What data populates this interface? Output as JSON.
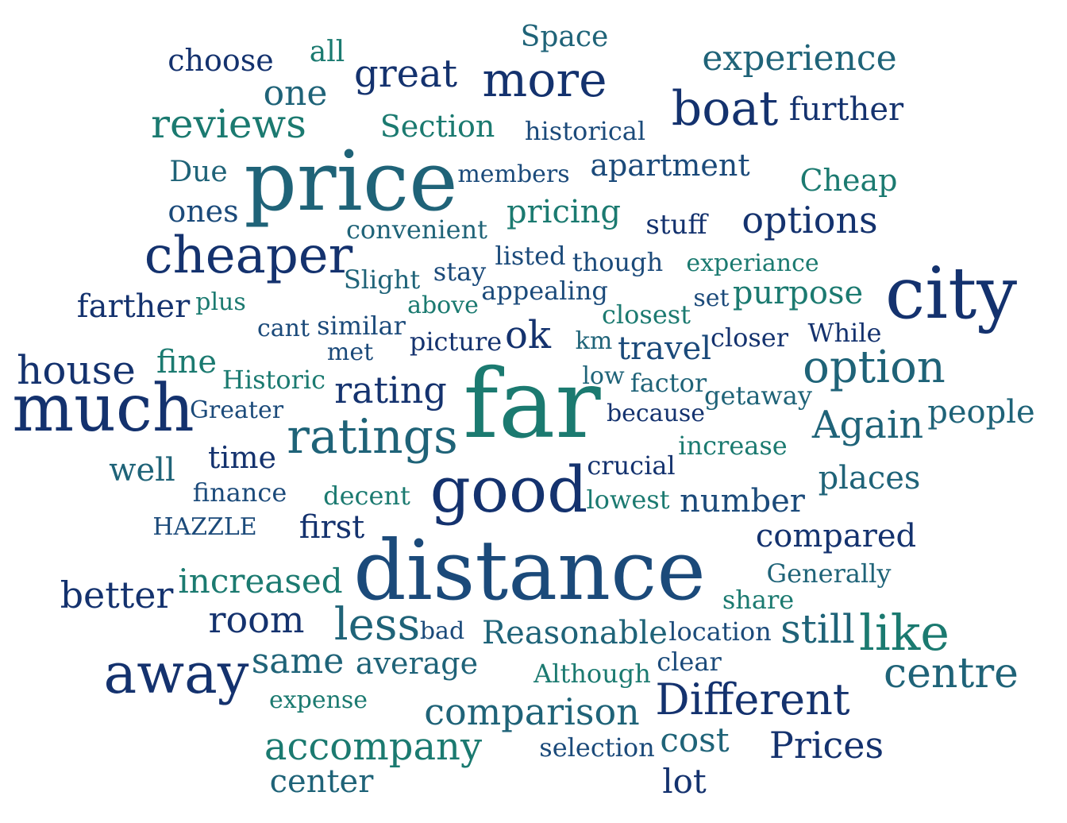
{
  "palette": {
    "navy": "#14326e",
    "blue": "#1b4a7a",
    "slate": "#1f6378",
    "teal": "#1b7a70"
  },
  "words": {
    "choose": "choose",
    "all": "all",
    "space": "Space",
    "great": "great",
    "more": "more",
    "experience": "experience",
    "one": "one",
    "boat": "boat",
    "further": "further",
    "reviews": "reviews",
    "section": "Section",
    "historical": "historical",
    "price": "price",
    "due": "Due",
    "members": "members",
    "apartment": "apartment",
    "cheap": "Cheap",
    "ones": "ones",
    "pricing": "pricing",
    "convenient": "convenient",
    "stuff": "stuff",
    "options": "options",
    "cheaper": "cheaper",
    "listed": "listed",
    "though": "though",
    "experiance": "experiance",
    "city": "city",
    "slight": "Slight",
    "stay": "stay",
    "appealing": "appealing",
    "purpose": "purpose",
    "farther": "farther",
    "plus": "plus",
    "above": "above",
    "set": "set",
    "closest": "closest",
    "cant": "cant",
    "similar": "similar",
    "picture": "picture",
    "ok": "ok",
    "km": "km",
    "travel": "travel",
    "closer": "closer",
    "while": "While",
    "met": "met",
    "house": "house",
    "fine": "fine",
    "historic": "Historic",
    "rating": "rating",
    "low": "low",
    "factor": "factor",
    "option": "option",
    "far": "far",
    "getaway": "getaway",
    "much": "much",
    "greater": "Greater",
    "because": "because",
    "people": "people",
    "ratings": "ratings",
    "again": "Again",
    "increase": "increase",
    "time": "time",
    "well": "well",
    "crucial": "crucial",
    "good": "good",
    "places": "places",
    "finance": "finance",
    "decent": "decent",
    "lowest": "lowest",
    "number": "number",
    "hazzle": "HAZZLE",
    "first": "first",
    "compared": "compared",
    "distance": "distance",
    "increased": "increased",
    "generally": "Generally",
    "better": "better",
    "share": "share",
    "room": "room",
    "less": "less",
    "still": "still",
    "like": "like",
    "bad": "bad",
    "reasonable": "Reasonable",
    "location": "location",
    "clear": "clear",
    "same": "same",
    "average": "average",
    "away": "away",
    "centre": "centre",
    "although": "Although",
    "expense": "expense",
    "different": "Different",
    "comparison": "comparison",
    "accompany": "accompany",
    "selection": "selection",
    "cost": "cost",
    "prices": "Prices",
    "center": "center",
    "lot": "lot"
  }
}
